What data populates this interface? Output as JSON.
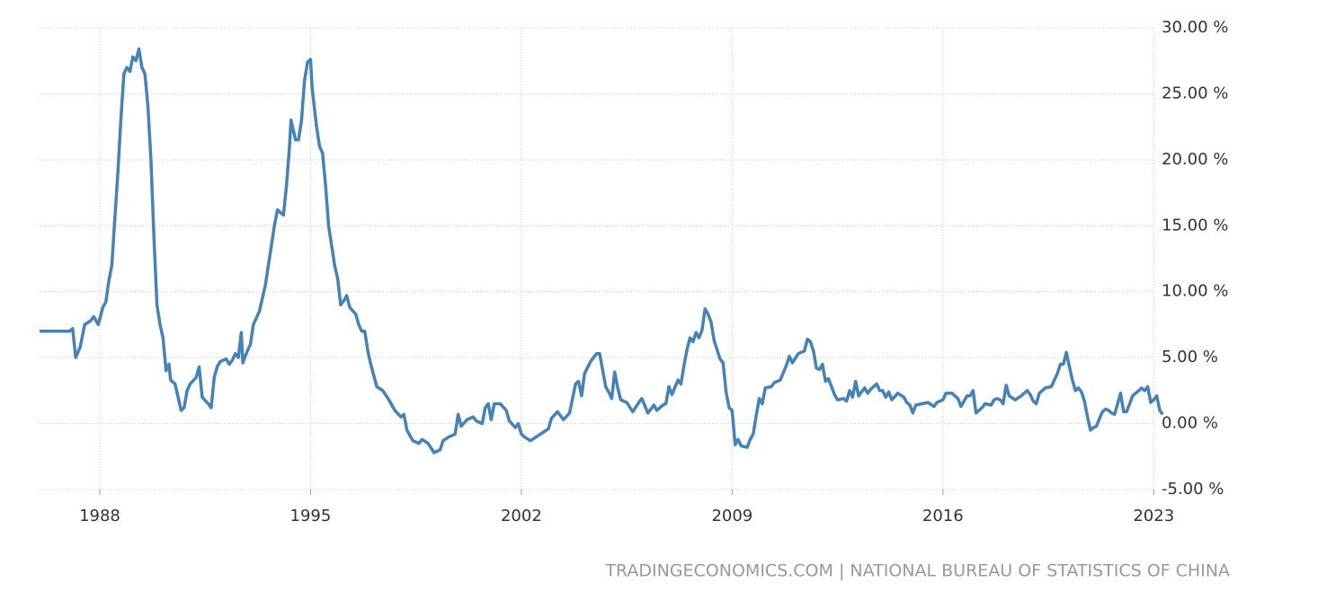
{
  "chart_data": {
    "type": "line",
    "source": "TRADINGECONOMICS.COM | NATIONAL BUREAU OF STATISTICS OF CHINA",
    "x": [
      1986.0,
      1987.0,
      1987.1,
      1987.2,
      1987.35,
      1987.5,
      1987.7,
      1987.8,
      1987.95,
      1988.1,
      1988.2,
      1988.3,
      1988.4,
      1988.5,
      1988.6,
      1988.7,
      1988.8,
      1988.9,
      1989.0,
      1989.1,
      1989.2,
      1989.3,
      1989.4,
      1989.5,
      1989.6,
      1989.7,
      1989.8,
      1989.9,
      1990.0,
      1990.1,
      1990.2,
      1990.3,
      1990.35,
      1990.5,
      1990.6,
      1990.7,
      1990.8,
      1990.9,
      1991.0,
      1991.2,
      1991.3,
      1991.4,
      1991.6,
      1991.7,
      1991.8,
      1991.9,
      1992.0,
      1992.2,
      1992.3,
      1992.4,
      1992.5,
      1992.6,
      1992.7,
      1992.75,
      1992.9,
      1993.0,
      1993.1,
      1993.3,
      1993.5,
      1993.6,
      1993.7,
      1993.8,
      1993.9,
      1994.0,
      1994.1,
      1994.2,
      1994.3,
      1994.35,
      1994.5,
      1994.6,
      1994.7,
      1994.8,
      1994.9,
      1995.0,
      1995.05,
      1995.2,
      1995.3,
      1995.4,
      1995.5,
      1995.6,
      1995.8,
      1995.9,
      1996.0,
      1996.1,
      1996.2,
      1996.3,
      1996.5,
      1996.6,
      1996.7,
      1996.8,
      1996.9,
      1997.0,
      1997.2,
      1997.4,
      1997.6,
      1997.8,
      1998.0,
      1998.1,
      1998.2,
      1998.4,
      1998.6,
      1998.7,
      1998.9,
      1999.1,
      1999.3,
      1999.4,
      1999.6,
      1999.8,
      1999.9,
      2000.0,
      2000.2,
      2000.4,
      2000.5,
      2000.7,
      2000.8,
      2000.9,
      2001.0,
      2001.1,
      2001.3,
      2001.5,
      2001.6,
      2001.8,
      2001.9,
      2002.0,
      2002.1,
      2002.3,
      2002.5,
      2002.7,
      2002.9,
      2003.0,
      2003.2,
      2003.4,
      2003.6,
      2003.8,
      2003.9,
      2004.0,
      2004.1,
      2004.3,
      2004.5,
      2004.6,
      2004.8,
      2004.9,
      2005.0,
      2005.1,
      2005.2,
      2005.3,
      2005.5,
      2005.7,
      2005.9,
      2006.0,
      2006.2,
      2006.4,
      2006.5,
      2006.7,
      2006.8,
      2006.9,
      2007.0,
      2007.2,
      2007.3,
      2007.4,
      2007.5,
      2007.6,
      2007.7,
      2007.8,
      2007.9,
      2008.0,
      2008.1,
      2008.2,
      2008.3,
      2008.4,
      2008.6,
      2008.7,
      2008.8,
      2008.9,
      2009.0,
      2009.1,
      2009.2,
      2009.3,
      2009.5,
      2009.6,
      2009.7,
      2009.8,
      2009.9,
      2010.0,
      2010.1,
      2010.3,
      2010.4,
      2010.6,
      2010.8,
      2010.9,
      2011.0,
      2011.2,
      2011.4,
      2011.5,
      2011.6,
      2011.7,
      2011.8,
      2011.9,
      2012.0,
      2012.1,
      2012.2,
      2012.4,
      2012.5,
      2012.7,
      2012.8,
      2012.9,
      2013.0,
      2013.1,
      2013.2,
      2013.4,
      2013.5,
      2013.6,
      2013.8,
      2013.9,
      2014.0,
      2014.1,
      2014.2,
      2014.3,
      2014.5,
      2014.7,
      2014.8,
      2014.9,
      2015.0,
      2015.1,
      2015.3,
      2015.5,
      2015.7,
      2015.8,
      2016.0,
      2016.1,
      2016.3,
      2016.5,
      2016.6,
      2016.8,
      2016.9,
      2017.0,
      2017.1,
      2017.3,
      2017.4,
      2017.6,
      2017.7,
      2017.8,
      2017.9,
      2018.0,
      2018.1,
      2018.2,
      2018.4,
      2018.6,
      2018.7,
      2018.8,
      2018.9,
      2019.0,
      2019.1,
      2019.2,
      2019.4,
      2019.6,
      2019.8,
      2019.9,
      2020.0,
      2020.1,
      2020.2,
      2020.3,
      2020.4,
      2020.5,
      2020.6,
      2020.7,
      2020.8,
      2020.9,
      2021.0,
      2021.1,
      2021.2,
      2021.3,
      2021.4,
      2021.5,
      2021.6,
      2021.7,
      2021.8,
      2021.9,
      2022.0,
      2022.1,
      2022.2,
      2022.3,
      2022.5,
      2022.6,
      2022.7,
      2022.8,
      2022.9,
      2023.0,
      2023.1,
      2023.2,
      2023.3
    ],
    "values": [
      7.0,
      7.0,
      7.2,
      5.0,
      5.8,
      7.5,
      7.8,
      8.1,
      7.5,
      8.8,
      9.2,
      10.8,
      12.0,
      15.5,
      19.0,
      23.0,
      26.5,
      27.0,
      26.7,
      27.8,
      27.5,
      28.4,
      27.0,
      26.5,
      24.0,
      20.0,
      14.0,
      9.0,
      7.5,
      6.5,
      4.0,
      4.5,
      3.3,
      3.0,
      2.0,
      1.0,
      1.2,
      2.5,
      3.0,
      3.5,
      4.3,
      2.0,
      1.5,
      1.2,
      3.5,
      4.3,
      4.7,
      4.9,
      4.5,
      4.8,
      5.3,
      5.0,
      6.9,
      4.6,
      5.5,
      6.0,
      7.5,
      8.5,
      10.5,
      12.0,
      13.5,
      15.0,
      16.2,
      16.0,
      15.8,
      18.0,
      21.0,
      23.0,
      21.5,
      21.5,
      23.0,
      26.0,
      27.4,
      27.6,
      25.5,
      22.5,
      21.0,
      20.5,
      18.0,
      15.0,
      12.0,
      11.0,
      9.0,
      9.3,
      9.7,
      8.8,
      8.3,
      7.5,
      7.0,
      7.0,
      5.5,
      4.5,
      2.8,
      2.5,
      1.8,
      1.0,
      0.5,
      0.7,
      -0.5,
      -1.3,
      -1.5,
      -1.2,
      -1.5,
      -2.2,
      -2.0,
      -1.3,
      -1.0,
      -0.8,
      0.7,
      -0.2,
      0.3,
      0.5,
      0.2,
      0.0,
      1.2,
      1.5,
      0.3,
      1.5,
      1.5,
      1.0,
      0.2,
      -0.3,
      0.0,
      -0.8,
      -1.0,
      -1.3,
      -1.0,
      -0.7,
      -0.4,
      0.4,
      0.9,
      0.3,
      0.8,
      3.0,
      3.2,
      2.1,
      3.8,
      4.7,
      5.3,
      5.3,
      2.8,
      2.4,
      1.9,
      3.9,
      2.7,
      1.8,
      1.6,
      0.9,
      1.6,
      1.9,
      0.8,
      1.4,
      1.0,
      1.4,
      1.5,
      2.8,
      2.2,
      3.3,
      3.0,
      4.4,
      5.6,
      6.5,
      6.2,
      6.9,
      6.5,
      7.1,
      8.7,
      8.3,
      7.7,
      6.3,
      4.9,
      4.6,
      2.4,
      1.2,
      1.0,
      -1.6,
      -1.2,
      -1.7,
      -1.8,
      -1.2,
      -0.8,
      0.6,
      1.9,
      1.5,
      2.7,
      2.8,
      3.1,
      3.3,
      4.4,
      5.1,
      4.6,
      5.3,
      5.5,
      6.4,
      6.2,
      5.5,
      4.2,
      4.1,
      4.5,
      3.2,
      3.4,
      2.2,
      1.8,
      1.9,
      1.7,
      2.5,
      2.0,
      3.2,
      2.1,
      2.7,
      2.3,
      2.6,
      3.0,
      2.5,
      2.5,
      2.0,
      2.4,
      1.8,
      2.3,
      2.0,
      1.6,
      1.4,
      0.8,
      1.4,
      1.5,
      1.6,
      1.3,
      1.6,
      1.8,
      2.3,
      2.3,
      1.9,
      1.3,
      2.1,
      2.1,
      2.5,
      0.8,
      1.2,
      1.5,
      1.4,
      1.8,
      1.9,
      1.8,
      1.5,
      2.9,
      2.1,
      1.8,
      2.1,
      2.3,
      2.5,
      2.2,
      1.7,
      1.5,
      2.3,
      2.7,
      2.8,
      3.8,
      4.5,
      4.5,
      5.4,
      4.3,
      3.3,
      2.5,
      2.7,
      2.4,
      1.7,
      0.5,
      -0.5,
      -0.3,
      -0.2,
      0.4,
      0.9,
      1.1,
      1.0,
      0.8,
      0.7,
      1.5,
      2.3,
      0.9,
      0.9,
      1.5,
      2.1,
      2.5,
      2.7,
      2.5,
      2.8,
      1.6,
      1.8,
      2.1,
      1.0,
      0.7
    ],
    "color": "#4682b4",
    "xlim": [
      1986,
      2023.5
    ],
    "xticks": [
      1988,
      1995,
      2002,
      2009,
      2016,
      2023
    ],
    "ylim": [
      -5,
      30
    ],
    "yticks": [
      {
        "value": -5,
        "label": "-5.00 %"
      },
      {
        "value": 0,
        "label": "0.00 %"
      },
      {
        "value": 5,
        "label": "5.00 %"
      },
      {
        "value": 10,
        "label": "10.00 %"
      },
      {
        "value": 15,
        "label": "15.00 %"
      },
      {
        "value": 20,
        "label": "20.00 %"
      },
      {
        "value": 25,
        "label": "25.00 %"
      },
      {
        "value": 30,
        "label": "30.00 %"
      }
    ],
    "grid": true
  }
}
